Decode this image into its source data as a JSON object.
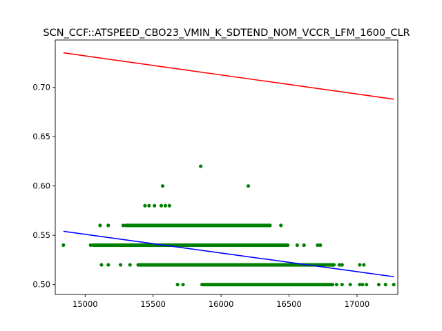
{
  "chart_data": {
    "type": "scatter",
    "title": "SCN_CCF::ATSPEED_CBO23_VMIN_K_SDTEND_NOM_VCCR_LFM_1600_CLR",
    "xlabel": "",
    "ylabel": "",
    "xlim": [
      14780,
      17300
    ],
    "ylim": [
      0.49,
      0.748
    ],
    "xticks": [
      15000,
      15500,
      16000,
      16500,
      17000
    ],
    "xtick_labels": [
      "15000",
      "15500",
      "16000",
      "16500",
      "17000"
    ],
    "yticks": [
      0.5,
      0.55,
      0.6,
      0.65,
      0.7
    ],
    "ytick_labels": [
      "0.50",
      "0.55",
      "0.60",
      "0.65",
      "0.70"
    ],
    "grid": false,
    "colors": {
      "points": "#008000",
      "upper_line": "#ff0000",
      "lower_line": "#0000ff"
    },
    "series": [
      {
        "color": "#008000",
        "marker": "circle",
        "bands": [
          {
            "y": 0.56,
            "x_ranges": [
              [
                15300,
                16360
              ]
            ],
            "x_points": [
              15110,
              15170,
              15280,
              16440
            ]
          },
          {
            "y": 0.54,
            "x_ranges": [
              [
                15060,
                16490
              ]
            ],
            "x_points": [
              14840,
              15040,
              16560,
              16610,
              16710,
              16730
            ]
          },
          {
            "y": 0.52,
            "x_ranges": [
              [
                15390,
                16830
              ]
            ],
            "x_points": [
              15120,
              15170,
              15260,
              15330,
              16870,
              16890,
              17020,
              17050
            ]
          },
          {
            "y": 0.5,
            "x_ranges": [
              [
                15860,
                16820
              ]
            ],
            "x_points": [
              15680,
              15720,
              16850,
              16890,
              16950,
              17020,
              17040,
              17070,
              17160,
              17210,
              17270
            ]
          }
        ],
        "points": [
          [
            15850,
            0.62
          ],
          [
            15570,
            0.6
          ],
          [
            16200,
            0.6
          ],
          [
            15440,
            0.58
          ],
          [
            15470,
            0.58
          ],
          [
            15510,
            0.58
          ],
          [
            15560,
            0.58
          ],
          [
            15590,
            0.58
          ],
          [
            15620,
            0.58
          ]
        ]
      }
    ],
    "lines": [
      {
        "color": "#ff0000",
        "x": [
          14840,
          17270
        ],
        "y": [
          0.735,
          0.688
        ]
      },
      {
        "color": "#0000ff",
        "x": [
          14840,
          17270
        ],
        "y": [
          0.554,
          0.508
        ]
      }
    ]
  }
}
